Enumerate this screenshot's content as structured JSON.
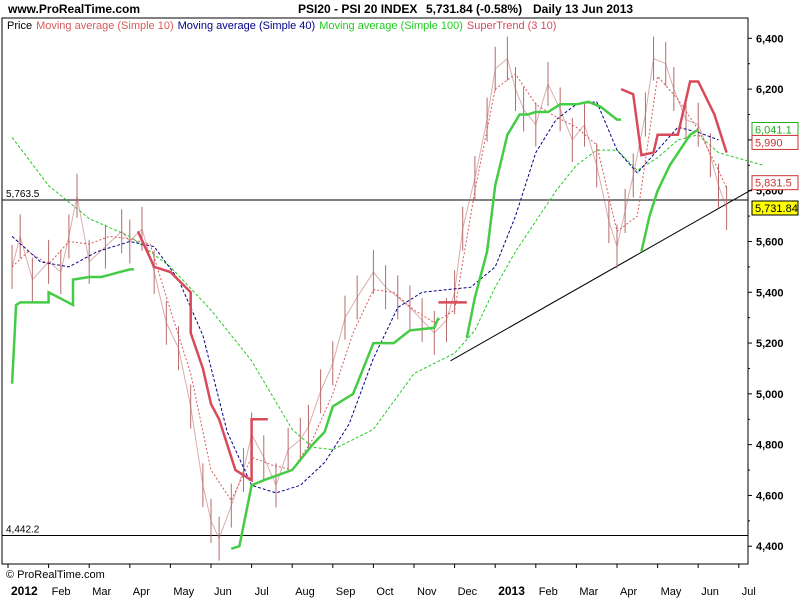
{
  "header": {
    "site": "www.ProRealTime.com",
    "instrument": "PSI20 - PSI 20 INDEX",
    "last_price": "5,731.84 (-0.58%)",
    "period": "Daily  13 Jun 2013"
  },
  "legend": {
    "price": "Price",
    "ma10": "Moving average (Simple 10)",
    "ma40": "Moving average (Simple 40)",
    "ma100": "Moving average (Simple 100)",
    "supertrend": "SuperTrend (3 10)"
  },
  "copyright": "© ProRealTime.com",
  "colors": {
    "price": "#b86a6a",
    "ma10": "#d85a5a",
    "ma40": "#00008b",
    "ma100": "#22cc22",
    "supertrend_up": "#44cc44",
    "supertrend_down": "#d84a5a",
    "last_price_bg": "#ffff00"
  },
  "chart_data": {
    "type": "line",
    "ylim": [
      4330,
      6480
    ],
    "y_ticks": [
      4400,
      4600,
      4800,
      5000,
      5200,
      5400,
      5600,
      5800,
      6000,
      6200,
      6400
    ],
    "y_tick_labels": [
      "4,400",
      "4,600",
      "4,800",
      "5,000",
      "5,200",
      "5,400",
      "5,600",
      "5,800",
      "6,000",
      "6,200",
      "6,400"
    ],
    "x_months": [
      "2012",
      "Feb",
      "Mar",
      "Apr",
      "May",
      "Jun",
      "Jul",
      "Aug",
      "Sep",
      "Oct",
      "Nov",
      "Dec",
      "2013",
      "Feb",
      "Mar",
      "Apr",
      "May",
      "Jun",
      "Jul"
    ],
    "x_month_index": [
      0,
      1,
      2,
      3,
      4,
      5,
      6,
      7,
      8,
      9,
      10,
      11,
      12,
      13,
      14,
      15,
      16,
      17,
      18
    ],
    "x_range": [
      0,
      18.6
    ],
    "bold_month_labels": [
      "2012",
      "2013"
    ],
    "price": {
      "name": "Price",
      "x": [
        0.1,
        0.3,
        0.6,
        1.0,
        1.3,
        1.5,
        1.7,
        2.0,
        2.4,
        2.8,
        3.0,
        3.3,
        3.6,
        3.9,
        4.2,
        4.5,
        4.8,
        5.0,
        5.2,
        5.5,
        5.8,
        6.0,
        6.3,
        6.6,
        6.9,
        7.2,
        7.4,
        7.7,
        8.0,
        8.3,
        8.6,
        9.0,
        9.3,
        9.6,
        9.9,
        10.2,
        10.5,
        10.8,
        11.0,
        11.2,
        11.5,
        11.8,
        12.0,
        12.3,
        12.5,
        12.7,
        13.0,
        13.3,
        13.6,
        13.9,
        14.2,
        14.5,
        14.8,
        15.0,
        15.2,
        15.4,
        15.7,
        15.9,
        16.2,
        16.4,
        16.7,
        17.0,
        17.3,
        17.5,
        17.7
      ],
      "values": [
        5500,
        5620,
        5450,
        5520,
        5480,
        5620,
        5780,
        5520,
        5580,
        5640,
        5600,
        5650,
        5480,
        5280,
        5180,
        4950,
        4640,
        4500,
        4430,
        4560,
        4700,
        4840,
        4750,
        4640,
        4780,
        4820,
        4870,
        5010,
        5120,
        5300,
        5380,
        5480,
        5420,
        5380,
        5340,
        5290,
        5240,
        5290,
        5400,
        5650,
        5850,
        6080,
        6280,
        6320,
        6200,
        6120,
        6060,
        6220,
        6120,
        6000,
        6060,
        5900,
        5680,
        5580,
        5720,
        5860,
        6100,
        6320,
        6300,
        6200,
        6080,
        6060,
        5940,
        5820,
        5731.84
      ]
    },
    "ma10": {
      "name": "Moving average (Simple 10)",
      "x": [
        0.1,
        0.5,
        1.0,
        1.5,
        2.0,
        2.5,
        3.0,
        3.5,
        4.0,
        4.5,
        5.0,
        5.5,
        6.0,
        6.5,
        7.0,
        7.5,
        8.0,
        8.5,
        9.0,
        9.5,
        10.0,
        10.5,
        11.0,
        11.5,
        12.0,
        12.5,
        13.0,
        13.5,
        14.0,
        14.5,
        15.0,
        15.5,
        16.0,
        16.5,
        17.0,
        17.5,
        17.7
      ],
      "values": [
        5500,
        5560,
        5510,
        5600,
        5590,
        5620,
        5610,
        5590,
        5330,
        5080,
        4700,
        4580,
        4750,
        4720,
        4700,
        4820,
        5000,
        5240,
        5410,
        5400,
        5330,
        5280,
        5330,
        5800,
        6200,
        6260,
        6140,
        6090,
        6050,
        5980,
        5640,
        5700,
        6250,
        6160,
        6040,
        5880,
        5810
      ]
    },
    "ma40": {
      "name": "Moving average (Simple 40)",
      "x": [
        0.1,
        0.8,
        1.5,
        2.2,
        3.0,
        3.6,
        4.2,
        4.8,
        5.4,
        6.0,
        6.6,
        7.2,
        7.8,
        8.4,
        9.0,
        9.6,
        10.2,
        10.8,
        11.4,
        12.0,
        12.5,
        13.0,
        13.5,
        14.0,
        14.5,
        15.0,
        15.5,
        16.0,
        16.5,
        17.0,
        17.5
      ],
      "values": [
        5620,
        5520,
        5500,
        5560,
        5600,
        5580,
        5450,
        5230,
        4850,
        4640,
        4610,
        4640,
        4730,
        4880,
        5140,
        5340,
        5400,
        5410,
        5420,
        5500,
        5700,
        5950,
        6080,
        6140,
        6150,
        5960,
        5870,
        5960,
        6050,
        6030,
        6000
      ]
    },
    "ma100": {
      "name": "Moving average (Simple 100)",
      "x": [
        0.1,
        1.0,
        2.0,
        3.0,
        4.0,
        5.0,
        6.0,
        7.0,
        7.5,
        8.0,
        9.0,
        10.0,
        10.5,
        11.0,
        11.5,
        12.0,
        12.5,
        13.0,
        13.5,
        14.0,
        14.5,
        15.0,
        15.5,
        16.0,
        16.5,
        17.0,
        17.5,
        18.6
      ],
      "values": [
        6010,
        5820,
        5690,
        5620,
        5500,
        5330,
        5130,
        4860,
        4790,
        4780,
        4860,
        5080,
        5120,
        5160,
        5250,
        5420,
        5560,
        5680,
        5800,
        5900,
        5960,
        5960,
        5880,
        5930,
        6000,
        6020,
        5950,
        5900
      ]
    },
    "supertrend": {
      "name": "SuperTrend (3 10)",
      "segments": [
        {
          "trend": "up",
          "x": [
            0.1,
            0.2,
            0.3,
            1.0,
            1.0,
            1.6,
            1.6,
            2.0,
            2.3,
            3.0,
            3.1
          ],
          "values": [
            5040,
            5350,
            5360,
            5360,
            5400,
            5350,
            5450,
            5460,
            5460,
            5490,
            5490
          ]
        },
        {
          "trend": "down",
          "x": [
            3.2,
            3.6,
            4.0,
            4.5,
            4.5,
            4.8,
            5.0,
            5.2,
            5.6,
            6.0,
            6.0,
            6.4
          ],
          "values": [
            5640,
            5500,
            5480,
            5400,
            5240,
            5100,
            4960,
            4900,
            4700,
            4660,
            4900,
            4900
          ]
        },
        {
          "trend": "up",
          "x": [
            5.5,
            5.7,
            6.0,
            6.3,
            7.0,
            7.5,
            7.8,
            8.0,
            8.5,
            9.0,
            9.5,
            9.9,
            10.5,
            10.6
          ],
          "values": [
            4390,
            4400,
            4640,
            4660,
            4700,
            4800,
            4850,
            4950,
            5000,
            5200,
            5200,
            5250,
            5260,
            5300
          ]
        },
        {
          "trend": "down",
          "x": [
            10.6,
            11.0,
            11.3
          ],
          "values": [
            5360,
            5360,
            5360
          ]
        },
        {
          "trend": "up",
          "x": [
            11.3,
            11.5,
            11.8,
            12.0,
            12.3,
            12.6,
            12.8,
            13.0,
            13.3,
            13.6,
            14.0,
            14.3,
            14.6,
            15.0,
            15.1
          ],
          "values": [
            5220,
            5380,
            5560,
            5820,
            6020,
            6100,
            6100,
            6110,
            6110,
            6140,
            6140,
            6150,
            6130,
            6080,
            6080
          ]
        },
        {
          "trend": "down",
          "x": [
            15.1,
            15.4,
            15.6,
            15.9,
            16.0,
            16.5,
            16.8,
            17.0,
            17.4,
            17.7
          ],
          "values": [
            6200,
            6180,
            5940,
            5950,
            6020,
            6020,
            6230,
            6230,
            6100,
            5950
          ]
        },
        {
          "trend": "up",
          "x": [
            15.6,
            15.8,
            16.0,
            16.3,
            16.8,
            17.0
          ],
          "values": [
            5560,
            5700,
            5800,
            5900,
            6020,
            6040
          ]
        }
      ]
    },
    "hlines": [
      {
        "value": 5763.5,
        "label": "5,763.5"
      },
      {
        "value": 4442.2,
        "label": "4,442.2"
      }
    ],
    "trendline": {
      "x": [
        10.9,
        18.6
      ],
      "values": [
        5130,
        5830
      ]
    },
    "right_tags": [
      {
        "text": "6,041.1",
        "value": 6041.1,
        "color": "#22aa22",
        "fill": "#ffffff"
      },
      {
        "text": "5,990",
        "value": 5990,
        "color": "#cc3333",
        "fill": "#ffffff"
      },
      {
        "text": "5,831.5",
        "value": 5831.5,
        "color": "#cc3333",
        "fill": "#ffffff"
      },
      {
        "text": "5,731.84",
        "value": 5731.84,
        "color": "#000000",
        "fill": "#ffff00"
      }
    ]
  }
}
